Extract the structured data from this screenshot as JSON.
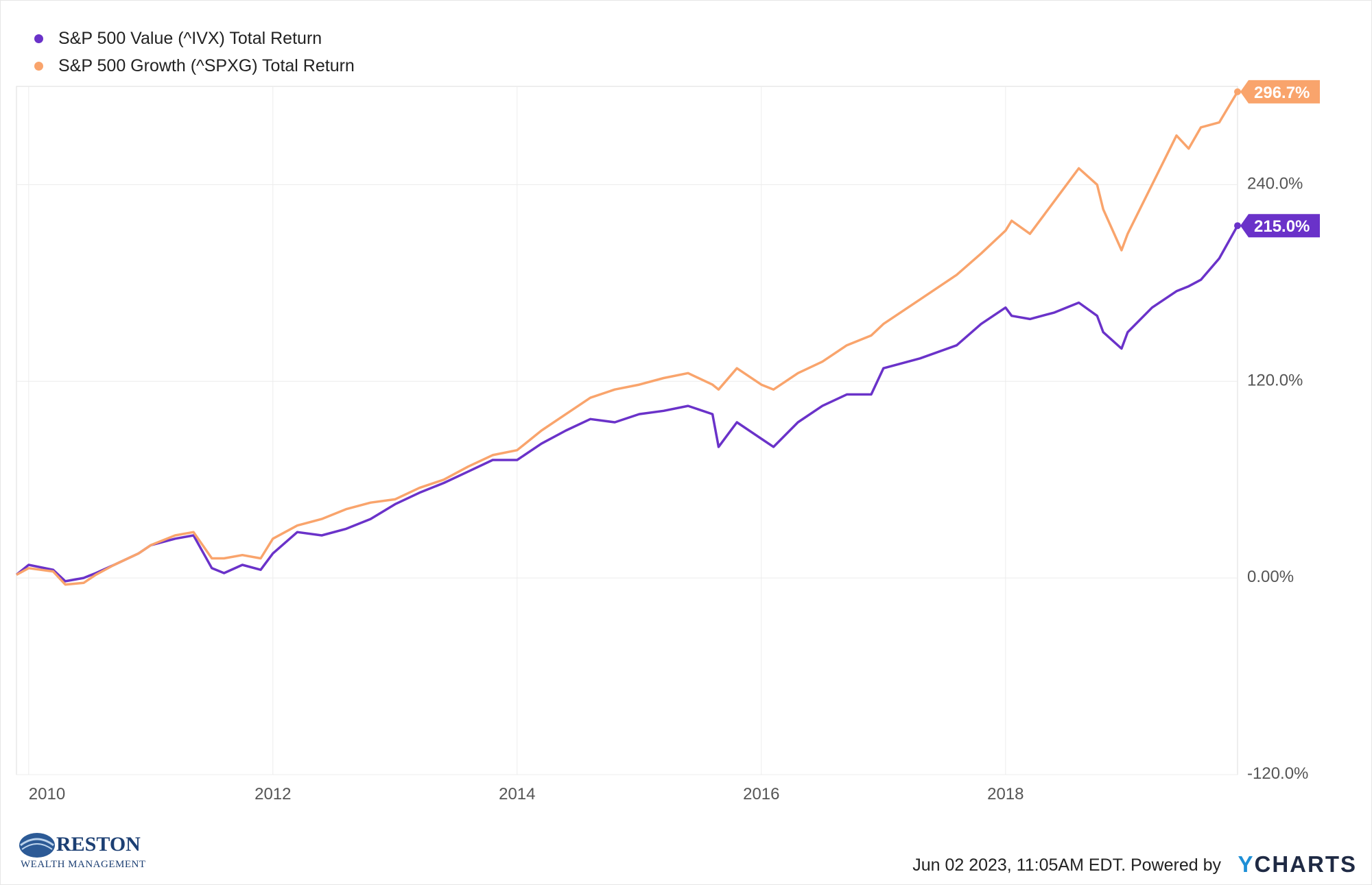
{
  "chart_data": {
    "type": "line",
    "title": "",
    "xlabel": "",
    "ylabel": "",
    "x_ticks": [
      "2010",
      "2012",
      "2014",
      "2016",
      "2018"
    ],
    "x_range": [
      2009.9,
      2019.9
    ],
    "y_ticks": [
      "-120.0%",
      "0.00%",
      "120.0%",
      "240.0%"
    ],
    "ylim": [
      -120,
      300
    ],
    "grid": true,
    "legend_position": "top-left",
    "x": [
      2009.9,
      2010.0,
      2010.2,
      2010.3,
      2010.45,
      2010.55,
      2010.7,
      2010.9,
      2011.0,
      2011.2,
      2011.35,
      2011.5,
      2011.6,
      2011.75,
      2011.9,
      2012.0,
      2012.2,
      2012.4,
      2012.6,
      2012.8,
      2013.0,
      2013.2,
      2013.4,
      2013.6,
      2013.8,
      2014.0,
      2014.2,
      2014.4,
      2014.6,
      2014.8,
      2015.0,
      2015.2,
      2015.4,
      2015.6,
      2015.65,
      2015.8,
      2016.0,
      2016.1,
      2016.3,
      2016.5,
      2016.7,
      2016.9,
      2017.0,
      2017.3,
      2017.6,
      2017.8,
      2018.0,
      2018.05,
      2018.2,
      2018.4,
      2018.6,
      2018.75,
      2018.8,
      2018.95,
      2019.0,
      2019.2,
      2019.4,
      2019.5,
      2019.6,
      2019.75,
      2019.9
    ],
    "series": [
      {
        "name": "S&P 500 Value (^IVX) Total Return",
        "color": "#6a32c9",
        "end_label": "215.0%",
        "values": [
          2,
          8,
          5,
          -2,
          0,
          3,
          8,
          15,
          20,
          24,
          26,
          6,
          3,
          8,
          5,
          15,
          28,
          26,
          30,
          36,
          45,
          52,
          58,
          65,
          72,
          72,
          82,
          90,
          97,
          95,
          100,
          102,
          105,
          100,
          80,
          95,
          85,
          80,
          95,
          105,
          112,
          112,
          128,
          134,
          142,
          155,
          165,
          160,
          158,
          162,
          168,
          160,
          150,
          140,
          150,
          165,
          175,
          178,
          182,
          195,
          215
        ]
      },
      {
        "name": "S&P 500 Growth (^SPXG) Total Return",
        "color": "#f9a46c",
        "end_label": "296.7%",
        "values": [
          2,
          6,
          4,
          -4,
          -3,
          2,
          8,
          15,
          20,
          26,
          28,
          12,
          12,
          14,
          12,
          24,
          32,
          36,
          42,
          46,
          48,
          55,
          60,
          68,
          75,
          78,
          90,
          100,
          110,
          115,
          118,
          122,
          125,
          118,
          115,
          128,
          118,
          115,
          125,
          132,
          142,
          148,
          155,
          170,
          185,
          198,
          212,
          218,
          210,
          230,
          250,
          240,
          225,
          200,
          210,
          240,
          270,
          262,
          275,
          278,
          296.7
        ]
      }
    ]
  },
  "footer": {
    "timestamp": "Jun 02 2023, 11:05AM EDT. Powered by",
    "logo_y": "Y",
    "logo_rest": "CHARTS"
  },
  "brand": {
    "name": "RESTON",
    "sub": "WEALTH MANAGEMENT"
  }
}
